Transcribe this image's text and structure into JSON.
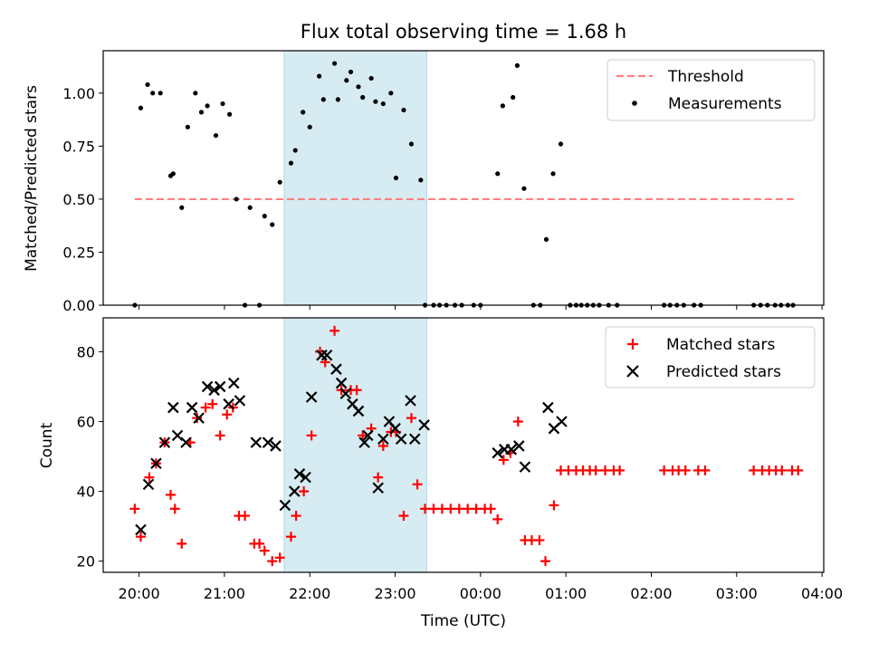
{
  "figure_title": "Flux total observing time = 1.68 h",
  "colors": {
    "threshold": "#ff7f7f",
    "measurement": "#000000",
    "matched": "#ff0000",
    "predicted": "#000000",
    "highlight": "#add8e6"
  },
  "chart_data": [
    {
      "type": "scatter",
      "panel": "top",
      "ylabel": "Matched/Predicted stars",
      "xlabel": "",
      "x_unit": "hours since 20:00 UTC",
      "xlim": [
        -0.42,
        8.02
      ],
      "ylim": [
        0,
        1.2
      ],
      "yticks": [
        "0.00",
        "0.25",
        "0.50",
        "0.75",
        "1.00"
      ],
      "ytick_values": [
        0,
        0.25,
        0.5,
        0.75,
        1.0
      ],
      "grid": false,
      "legend": {
        "position": "top-right",
        "entries": [
          "Threshold",
          "Measurements"
        ]
      },
      "highlight_span": [
        1.7,
        3.37
      ],
      "threshold": {
        "name": "Threshold",
        "y": 0.5,
        "x_range": [
          -0.05,
          7.7
        ]
      },
      "series": [
        {
          "name": "Measurements",
          "points": [
            [
              -0.05,
              0.0
            ],
            [
              0.02,
              0.93
            ],
            [
              0.1,
              1.04
            ],
            [
              0.16,
              1.0
            ],
            [
              0.25,
              1.0
            ],
            [
              0.37,
              0.61
            ],
            [
              0.4,
              0.62
            ],
            [
              0.5,
              0.46
            ],
            [
              0.57,
              0.84
            ],
            [
              0.66,
              1.0
            ],
            [
              0.73,
              0.91
            ],
            [
              0.8,
              0.94
            ],
            [
              0.9,
              0.8
            ],
            [
              0.98,
              0.95
            ],
            [
              1.06,
              0.9
            ],
            [
              1.14,
              0.5
            ],
            [
              1.24,
              0.0
            ],
            [
              1.3,
              0.46
            ],
            [
              1.41,
              0.0
            ],
            [
              1.47,
              0.42
            ],
            [
              1.56,
              0.38
            ],
            [
              1.65,
              0.58
            ],
            [
              1.78,
              0.67
            ],
            [
              1.83,
              0.73
            ],
            [
              1.92,
              0.91
            ],
            [
              2.0,
              0.84
            ],
            [
              2.11,
              1.08
            ],
            [
              2.16,
              0.97
            ],
            [
              2.29,
              1.14
            ],
            [
              2.33,
              0.97
            ],
            [
              2.43,
              1.06
            ],
            [
              2.48,
              1.1
            ],
            [
              2.57,
              1.03
            ],
            [
              2.62,
              0.98
            ],
            [
              2.72,
              1.07
            ],
            [
              2.77,
              0.96
            ],
            [
              2.86,
              0.95
            ],
            [
              2.95,
              1.0
            ],
            [
              3.01,
              0.6
            ],
            [
              3.1,
              0.92
            ],
            [
              3.19,
              0.76
            ],
            [
              3.3,
              0.59
            ],
            [
              3.35,
              0.0
            ],
            [
              3.45,
              0.0
            ],
            [
              3.52,
              0.0
            ],
            [
              3.6,
              0.0
            ],
            [
              3.7,
              0.0
            ],
            [
              3.78,
              0.0
            ],
            [
              3.92,
              0.0
            ],
            [
              4.0,
              0.0
            ],
            [
              4.2,
              0.62
            ],
            [
              4.26,
              0.94
            ],
            [
              4.38,
              0.98
            ],
            [
              4.43,
              1.13
            ],
            [
              4.51,
              0.55
            ],
            [
              4.62,
              0.0
            ],
            [
              4.7,
              0.0
            ],
            [
              4.77,
              0.31
            ],
            [
              4.85,
              0.62
            ],
            [
              4.94,
              0.76
            ],
            [
              5.05,
              0.0
            ],
            [
              5.12,
              0.0
            ],
            [
              5.18,
              0.0
            ],
            [
              5.25,
              0.0
            ],
            [
              5.32,
              0.0
            ],
            [
              5.39,
              0.0
            ],
            [
              5.5,
              0.0
            ],
            [
              5.6,
              0.0
            ],
            [
              6.15,
              0.0
            ],
            [
              6.22,
              0.0
            ],
            [
              6.3,
              0.0
            ],
            [
              6.38,
              0.0
            ],
            [
              6.5,
              0.0
            ],
            [
              6.58,
              0.0
            ],
            [
              7.2,
              0.0
            ],
            [
              7.28,
              0.0
            ],
            [
              7.36,
              0.0
            ],
            [
              7.45,
              0.0
            ],
            [
              7.52,
              0.0
            ],
            [
              7.6,
              0.0
            ],
            [
              7.66,
              0.0
            ]
          ]
        }
      ]
    },
    {
      "type": "scatter",
      "panel": "bottom",
      "ylabel": "Count",
      "xlabel": "Time (UTC)",
      "x_unit": "hours since 20:00 UTC",
      "xlim": [
        -0.42,
        8.02
      ],
      "ylim": [
        16.8,
        89.7
      ],
      "yticks": [
        "20",
        "40",
        "60",
        "80"
      ],
      "ytick_values": [
        20,
        40,
        60,
        80
      ],
      "xticks": [
        "20:00",
        "21:00",
        "22:00",
        "23:00",
        "00:00",
        "01:00",
        "02:00",
        "03:00",
        "04:00"
      ],
      "xtick_values": [
        0,
        1,
        2,
        3,
        4,
        5,
        6,
        7,
        8
      ],
      "grid": false,
      "legend": {
        "position": "top-right",
        "entries": [
          "Matched stars",
          "Predicted stars"
        ]
      },
      "highlight_span": [
        1.7,
        3.37
      ],
      "series": [
        {
          "name": "Matched stars",
          "marker": "plus",
          "points": [
            [
              -0.05,
              35
            ],
            [
              0.02,
              27
            ],
            [
              0.12,
              44
            ],
            [
              0.2,
              48
            ],
            [
              0.3,
              54
            ],
            [
              0.37,
              39
            ],
            [
              0.42,
              35
            ],
            [
              0.5,
              25
            ],
            [
              0.6,
              54
            ],
            [
              0.68,
              61
            ],
            [
              0.78,
              64
            ],
            [
              0.86,
              65
            ],
            [
              0.95,
              56
            ],
            [
              1.03,
              62
            ],
            [
              1.1,
              64
            ],
            [
              1.17,
              33
            ],
            [
              1.24,
              33
            ],
            [
              1.35,
              25
            ],
            [
              1.41,
              25
            ],
            [
              1.47,
              23
            ],
            [
              1.56,
              20
            ],
            [
              1.65,
              21
            ],
            [
              1.78,
              27
            ],
            [
              1.84,
              33
            ],
            [
              1.93,
              40
            ],
            [
              2.02,
              56
            ],
            [
              2.12,
              80
            ],
            [
              2.18,
              77
            ],
            [
              2.29,
              86
            ],
            [
              2.37,
              69
            ],
            [
              2.48,
              69
            ],
            [
              2.55,
              69
            ],
            [
              2.62,
              56
            ],
            [
              2.72,
              58
            ],
            [
              2.8,
              44
            ],
            [
              2.86,
              53
            ],
            [
              2.95,
              57
            ],
            [
              3.01,
              57
            ],
            [
              3.1,
              33
            ],
            [
              3.19,
              61
            ],
            [
              3.26,
              42
            ],
            [
              3.35,
              35
            ],
            [
              3.45,
              35
            ],
            [
              3.55,
              35
            ],
            [
              3.65,
              35
            ],
            [
              3.75,
              35
            ],
            [
              3.85,
              35
            ],
            [
              3.95,
              35
            ],
            [
              4.05,
              35
            ],
            [
              4.12,
              35
            ],
            [
              4.2,
              32
            ],
            [
              4.27,
              49
            ],
            [
              4.35,
              51
            ],
            [
              4.44,
              60
            ],
            [
              4.52,
              26
            ],
            [
              4.6,
              26
            ],
            [
              4.69,
              26
            ],
            [
              4.76,
              20
            ],
            [
              4.86,
              36
            ],
            [
              4.94,
              46
            ],
            [
              5.03,
              46
            ],
            [
              5.12,
              46
            ],
            [
              5.2,
              46
            ],
            [
              5.28,
              46
            ],
            [
              5.35,
              46
            ],
            [
              5.46,
              46
            ],
            [
              5.56,
              46
            ],
            [
              5.63,
              46
            ],
            [
              6.15,
              46
            ],
            [
              6.25,
              46
            ],
            [
              6.32,
              46
            ],
            [
              6.4,
              46
            ],
            [
              6.55,
              46
            ],
            [
              6.63,
              46
            ],
            [
              7.2,
              46
            ],
            [
              7.3,
              46
            ],
            [
              7.38,
              46
            ],
            [
              7.46,
              46
            ],
            [
              7.53,
              46
            ],
            [
              7.65,
              46
            ],
            [
              7.72,
              46
            ]
          ]
        },
        {
          "name": "Predicted stars",
          "marker": "x",
          "points": [
            [
              0.02,
              29
            ],
            [
              0.11,
              42
            ],
            [
              0.2,
              48
            ],
            [
              0.3,
              54
            ],
            [
              0.4,
              64
            ],
            [
              0.45,
              56
            ],
            [
              0.55,
              54
            ],
            [
              0.62,
              64
            ],
            [
              0.7,
              61
            ],
            [
              0.8,
              70
            ],
            [
              0.88,
              69
            ],
            [
              0.95,
              70
            ],
            [
              1.05,
              65
            ],
            [
              1.11,
              71
            ],
            [
              1.18,
              66
            ],
            [
              1.37,
              54
            ],
            [
              1.51,
              54
            ],
            [
              1.6,
              53
            ],
            [
              1.71,
              36
            ],
            [
              1.82,
              40
            ],
            [
              1.88,
              45
            ],
            [
              1.95,
              44
            ],
            [
              2.02,
              67
            ],
            [
              2.14,
              79
            ],
            [
              2.2,
              79
            ],
            [
              2.31,
              75
            ],
            [
              2.37,
              71
            ],
            [
              2.42,
              68
            ],
            [
              2.5,
              65
            ],
            [
              2.57,
              63
            ],
            [
              2.64,
              54
            ],
            [
              2.68,
              56
            ],
            [
              2.8,
              41
            ],
            [
              2.86,
              55
            ],
            [
              2.93,
              60
            ],
            [
              3.0,
              58
            ],
            [
              3.07,
              55
            ],
            [
              3.18,
              66
            ],
            [
              3.23,
              55
            ],
            [
              3.34,
              59
            ],
            [
              4.2,
              51
            ],
            [
              4.28,
              52
            ],
            [
              4.36,
              52
            ],
            [
              4.45,
              53
            ],
            [
              4.52,
              47
            ],
            [
              4.79,
              64
            ],
            [
              4.86,
              58
            ],
            [
              4.95,
              60
            ]
          ]
        }
      ]
    }
  ]
}
